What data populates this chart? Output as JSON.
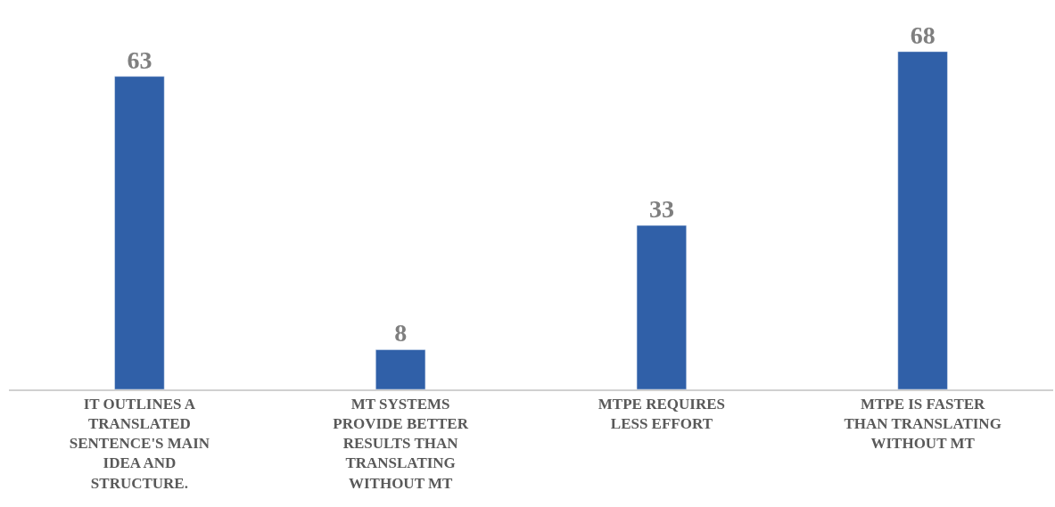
{
  "chart_data": {
    "type": "bar",
    "categories": [
      "IT OUTLINES A TRANSLATED SENTENCE'S MAIN IDEA AND STRUCTURE.",
      "MT SYSTEMS PROVIDE BETTER RESULTS THAN TRANSLATING WITHOUT MT",
      "MTPE REQUIRES LESS EFFORT",
      "MTPE IS FASTER THAN TRANSLATING WITHOUT MT"
    ],
    "values": [
      63,
      8,
      33,
      68
    ],
    "color": "#3060a8",
    "data_labels": true,
    "legend": false
  }
}
